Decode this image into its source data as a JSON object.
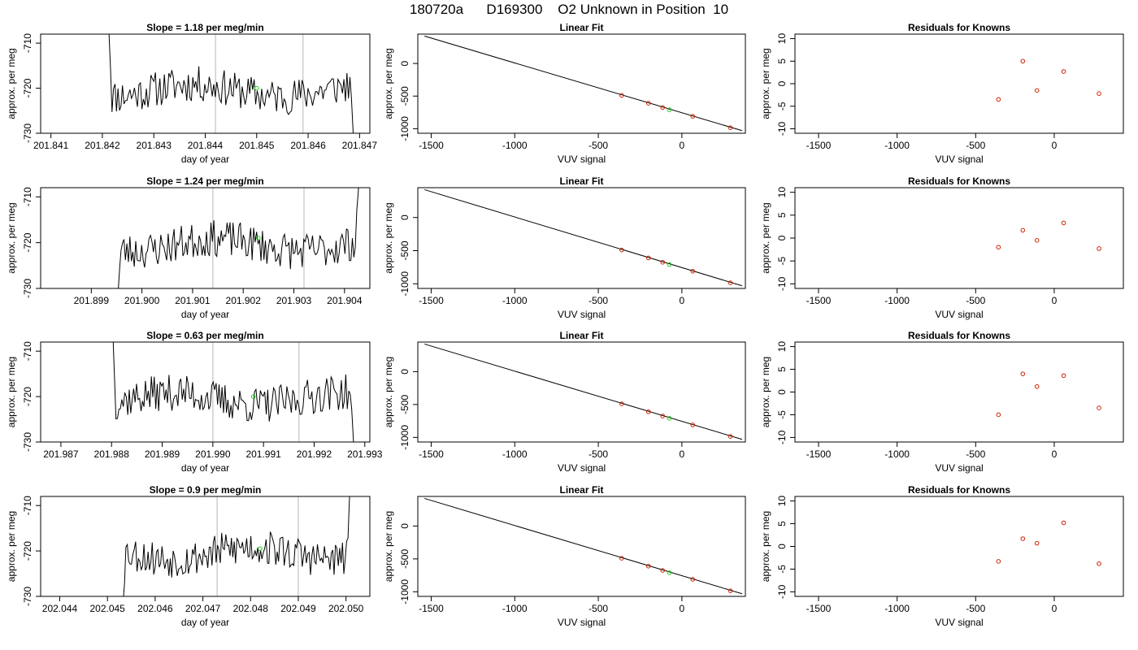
{
  "page": {
    "title": "180720a      D169300    O2 Unknown in Position  10"
  },
  "colors": {
    "series": "#000000",
    "known_points": "#cc2200",
    "unknown_point": "#22cc22",
    "vertical_markers": "#c8c8c8",
    "frame": "#000000"
  },
  "chart_data": [
    {
      "type": "line",
      "panel": "time-series",
      "row": 1,
      "title": "Slope =  1.18  per meg/min",
      "xlabel": "day of year",
      "ylabel": "approx. per meg",
      "xlim": [
        201.8408,
        201.8472
      ],
      "ylim": [
        -730,
        -708
      ],
      "xticks": [
        "201.841",
        "201.842",
        "201.843",
        "201.844",
        "201.845",
        "201.846",
        "201.847"
      ],
      "yticks": [
        "-730",
        "-720",
        "-710"
      ],
      "start_x": 201.8421,
      "end_x": 201.8469,
      "series_start": -700,
      "series_end": -735,
      "seed": 11,
      "vlines": [
        201.8442,
        201.8459
      ],
      "unknown_point": {
        "x": 201.845,
        "y": -720
      }
    },
    {
      "type": "scatter",
      "panel": "linear-fit",
      "row": 1,
      "title": "Linear Fit",
      "xlabel": "VUV signal",
      "ylabel": "approx. per meg",
      "xlim": [
        -1580,
        380
      ],
      "ylim": [
        -1070,
        450
      ],
      "xticks": [
        "-1500",
        "-1000",
        "-500",
        "0"
      ],
      "yticks": [
        "-1000",
        "-500",
        "0"
      ],
      "fit_line": {
        "x": [
          -1540,
          360
        ],
        "y": [
          420,
          -1030
        ]
      },
      "knowns": {
        "x": [
          -360,
          -200,
          -115,
          65,
          290
        ],
        "y": [
          -490,
          -610,
          -675,
          -810,
          -985
        ]
      },
      "unknown": {
        "x": -75,
        "y": -710
      }
    },
    {
      "type": "scatter",
      "panel": "residuals",
      "row": 1,
      "title": "Residuals for Knowns",
      "xlabel": "VUV signal",
      "ylabel": "approx. per meg",
      "xlim": [
        -1650,
        440
      ],
      "ylim": [
        -11,
        11
      ],
      "xticks": [
        "-1500",
        "-1000",
        "-500",
        "0"
      ],
      "yticks": [
        "-10",
        "-5",
        "0",
        "5",
        "10"
      ],
      "points": {
        "x": [
          -355,
          -200,
          -110,
          60,
          285
        ],
        "y": [
          -3.5,
          5.0,
          -1.5,
          2.7,
          -2.2
        ]
      }
    },
    {
      "type": "line",
      "panel": "time-series",
      "row": 2,
      "title": "Slope =  1.24  per meg/min",
      "xlabel": "day of year",
      "ylabel": "approx. per meg",
      "xlim": [
        201.898,
        201.9045
      ],
      "ylim": [
        -730,
        -708
      ],
      "xticks": [
        "201.899",
        "201.900",
        "201.901",
        "201.902",
        "201.903",
        "201.904"
      ],
      "yticks": [
        "-730",
        "-720",
        "-710"
      ],
      "start_x": 201.8995,
      "end_x": 201.9043,
      "series_start": -735,
      "series_end": -703,
      "seed": 23,
      "vlines": [
        201.9014,
        201.9032
      ],
      "unknown_point": {
        "x": 201.9023,
        "y": -719
      }
    },
    {
      "type": "scatter",
      "panel": "linear-fit",
      "row": 2,
      "title": "Linear Fit",
      "xlabel": "VUV signal",
      "ylabel": "approx. per meg",
      "xlim": [
        -1580,
        380
      ],
      "ylim": [
        -1070,
        450
      ],
      "xticks": [
        "-1500",
        "-1000",
        "-500",
        "0"
      ],
      "yticks": [
        "-1000",
        "-500",
        "0"
      ],
      "fit_line": {
        "x": [
          -1540,
          360
        ],
        "y": [
          420,
          -1030
        ]
      },
      "knowns": {
        "x": [
          -360,
          -200,
          -115,
          65,
          290
        ],
        "y": [
          -490,
          -610,
          -675,
          -810,
          -985
        ]
      },
      "unknown": {
        "x": -75,
        "y": -710
      }
    },
    {
      "type": "scatter",
      "panel": "residuals",
      "row": 2,
      "title": "Residuals for Knowns",
      "xlabel": "VUV signal",
      "ylabel": "approx. per meg",
      "xlim": [
        -1650,
        440
      ],
      "ylim": [
        -11,
        11
      ],
      "xticks": [
        "-1500",
        "-1000",
        "-500",
        "0"
      ],
      "yticks": [
        "-10",
        "-5",
        "0",
        "5",
        "10"
      ],
      "points": {
        "x": [
          -355,
          -200,
          -110,
          60,
          285
        ],
        "y": [
          -2.0,
          1.7,
          -0.5,
          3.3,
          -2.3
        ]
      }
    },
    {
      "type": "line",
      "panel": "time-series",
      "row": 3,
      "title": "Slope =  0.63  per meg/min",
      "xlabel": "day of year",
      "ylabel": "approx. per meg",
      "xlim": [
        201.9866,
        201.9931
      ],
      "ylim": [
        -730,
        -708
      ],
      "xticks": [
        "201.987",
        "201.988",
        "201.989",
        "201.990",
        "201.991",
        "201.992",
        "201.993"
      ],
      "yticks": [
        "-730",
        "-720",
        "-710"
      ],
      "start_x": 201.988,
      "end_x": 201.9928,
      "series_start": -700,
      "series_end": -735,
      "seed": 37,
      "vlines": [
        201.99,
        201.9917
      ],
      "unknown_point": {
        "x": 201.9908,
        "y": -720
      }
    },
    {
      "type": "scatter",
      "panel": "linear-fit",
      "row": 3,
      "title": "Linear Fit",
      "xlabel": "VUV signal",
      "ylabel": "approx. per meg",
      "xlim": [
        -1580,
        380
      ],
      "ylim": [
        -1070,
        450
      ],
      "xticks": [
        "-1500",
        "-1000",
        "-500",
        "0"
      ],
      "yticks": [
        "-1000",
        "-500",
        "0"
      ],
      "fit_line": {
        "x": [
          -1540,
          360
        ],
        "y": [
          420,
          -1030
        ]
      },
      "knowns": {
        "x": [
          -360,
          -200,
          -115,
          65,
          290
        ],
        "y": [
          -490,
          -610,
          -675,
          -810,
          -985
        ]
      },
      "unknown": {
        "x": -75,
        "y": -710
      }
    },
    {
      "type": "scatter",
      "panel": "residuals",
      "row": 3,
      "title": "Residuals for Knowns",
      "xlabel": "VUV signal",
      "ylabel": "approx. per meg",
      "xlim": [
        -1650,
        440
      ],
      "ylim": [
        -11,
        11
      ],
      "xticks": [
        "-1500",
        "-1000",
        "-500",
        "0"
      ],
      "yticks": [
        "-10",
        "-5",
        "0",
        "5",
        "10"
      ],
      "points": {
        "x": [
          -355,
          -200,
          -110,
          60,
          285
        ],
        "y": [
          -5.0,
          4.0,
          1.2,
          3.6,
          -3.5
        ]
      }
    },
    {
      "type": "line",
      "panel": "time-series",
      "row": 4,
      "title": "Slope =  0.9  per meg/min",
      "xlabel": "day of year",
      "ylabel": "approx. per meg",
      "xlim": [
        202.0436,
        202.0505
      ],
      "ylim": [
        -730,
        -708
      ],
      "xticks": [
        "202.044",
        "202.045",
        "202.046",
        "202.047",
        "202.048",
        "202.049",
        "202.050"
      ],
      "yticks": [
        "-730",
        "-720",
        "-710"
      ],
      "start_x": 202.0453,
      "end_x": 202.0501,
      "series_start": -735,
      "series_end": -703,
      "seed": 53,
      "vlines": [
        202.0473,
        202.049
      ],
      "unknown_point": {
        "x": 202.0482,
        "y": -719.5
      }
    },
    {
      "type": "scatter",
      "panel": "linear-fit",
      "row": 4,
      "title": "Linear Fit",
      "xlabel": "VUV signal",
      "ylabel": "approx. per meg",
      "xlim": [
        -1580,
        380
      ],
      "ylim": [
        -1070,
        450
      ],
      "xticks": [
        "-1500",
        "-1000",
        "-500",
        "0"
      ],
      "yticks": [
        "-1000",
        "-500",
        "0"
      ],
      "fit_line": {
        "x": [
          -1540,
          360
        ],
        "y": [
          420,
          -1030
        ]
      },
      "knowns": {
        "x": [
          -360,
          -200,
          -115,
          65,
          290
        ],
        "y": [
          -490,
          -610,
          -675,
          -810,
          -985
        ]
      },
      "unknown": {
        "x": -75,
        "y": -710
      }
    },
    {
      "type": "scatter",
      "panel": "residuals",
      "row": 4,
      "title": "Residuals for Knowns",
      "xlabel": "VUV signal",
      "ylabel": "approx. per meg",
      "xlim": [
        -1650,
        440
      ],
      "ylim": [
        -11,
        11
      ],
      "xticks": [
        "-1500",
        "-1000",
        "-500",
        "0"
      ],
      "yticks": [
        "-10",
        "-5",
        "0",
        "5",
        "10"
      ],
      "points": {
        "x": [
          -355,
          -200,
          -110,
          60,
          285
        ],
        "y": [
          -3.3,
          1.7,
          0.7,
          5.2,
          -3.8
        ]
      }
    }
  ]
}
